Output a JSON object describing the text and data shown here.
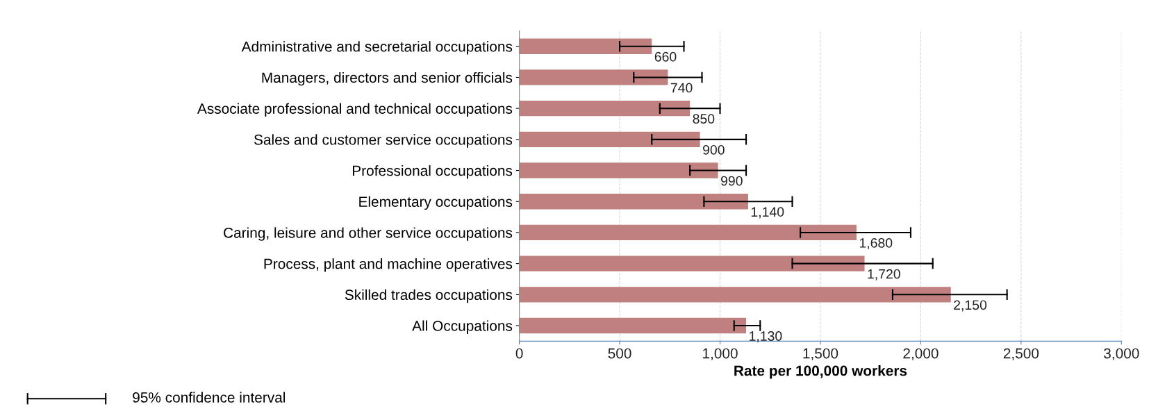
{
  "chart_data": {
    "type": "bar",
    "orientation": "horizontal",
    "categories": [
      "Administrative and secretarial occupations",
      "Managers, directors and senior officials",
      "Associate professional and technical occupations",
      "Sales and customer service occupations",
      "Professional occupations",
      "Elementary occupations",
      "Caring, leisure and other service occupations",
      "Process, plant and machine operatives",
      "Skilled trades occupations",
      "All Occupations"
    ],
    "values": [
      660,
      740,
      850,
      900,
      990,
      1140,
      1680,
      1720,
      2150,
      1130
    ],
    "errors": [
      [
        500,
        820
      ],
      [
        570,
        910
      ],
      [
        700,
        1000
      ],
      [
        660,
        1130
      ],
      [
        850,
        1130
      ],
      [
        920,
        1360
      ],
      [
        1400,
        1950
      ],
      [
        1360,
        2060
      ],
      [
        1860,
        2430
      ],
      [
        1070,
        1200
      ]
    ],
    "value_labels": [
      "660",
      "740",
      "850",
      "900",
      "990",
      "1,140",
      "1,680",
      "1,720",
      "2,150",
      "1,130"
    ],
    "color": "#c0807f",
    "xlim": [
      0,
      3000
    ],
    "xticks": [
      0,
      500,
      {
        "value": 1000,
        "label": "1,000"
      },
      {
        "value": 1500,
        "label": "1,500"
      },
      {
        "value": 2000,
        "label": "2,000"
      },
      {
        "value": 2500,
        "label": "2,500"
      },
      {
        "value": 3000,
        "label": "3,000"
      }
    ],
    "xlabel": "Rate per 100,000 workers",
    "grid": "x",
    "annotations": [
      "95% confidence interval"
    ]
  }
}
